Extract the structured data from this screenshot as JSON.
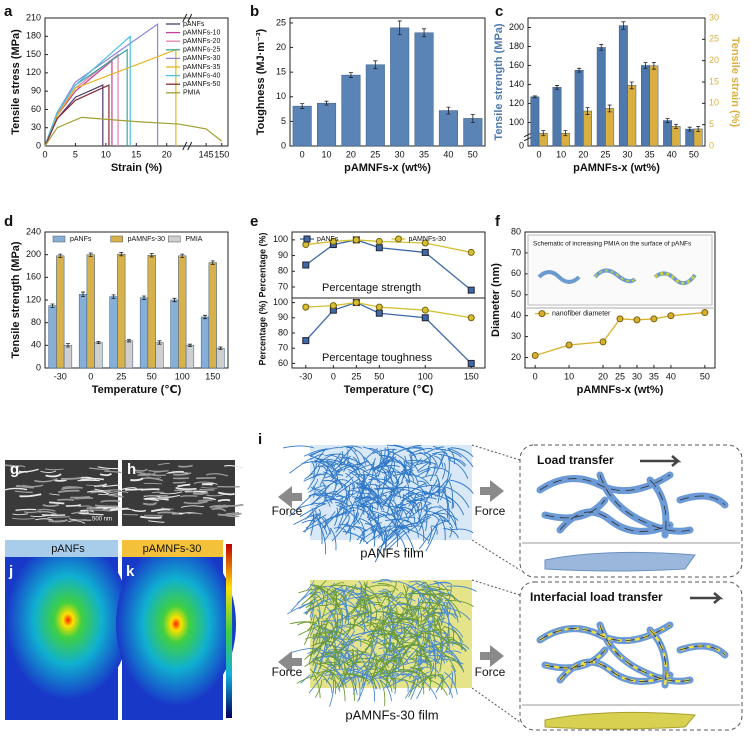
{
  "chart_data": [
    {
      "panel": "a",
      "type": "line",
      "xlabel": "Strain (%)",
      "ylabel": "Tensile stress (MPa)",
      "xlim": [
        0,
        152
      ],
      "xbreak": [
        23,
        140
      ],
      "xticks": [
        0,
        5,
        10,
        15,
        20,
        145,
        150
      ],
      "ylim": [
        0,
        210
      ],
      "yticks": [
        0,
        30,
        60,
        90,
        120,
        150,
        180,
        210
      ],
      "legend": "upper right",
      "series": [
        {
          "name": "pANFs",
          "color": "#4b3b6b",
          "x": [
            0,
            2,
            5,
            9.5,
            9.5
          ],
          "values": [
            0,
            45,
            80,
            100,
            0
          ]
        },
        {
          "name": "pAMNFs-10",
          "color": "#c0409a",
          "x": [
            0,
            2,
            5,
            11,
            11
          ],
          "values": [
            0,
            50,
            90,
            140,
            0
          ]
        },
        {
          "name": "pAMNFs-20",
          "color": "#e77fb0",
          "x": [
            0,
            2,
            5,
            12,
            12
          ],
          "values": [
            0,
            52,
            95,
            150,
            0
          ]
        },
        {
          "name": "pAMNFs-25",
          "color": "#3aa7a0",
          "x": [
            0,
            2,
            5,
            13.5,
            13.5
          ],
          "values": [
            0,
            55,
            100,
            158,
            0
          ]
        },
        {
          "name": "pAMNFs-30",
          "color": "#8c88d8",
          "x": [
            0,
            2,
            5,
            18.5,
            18.5
          ],
          "values": [
            0,
            55,
            105,
            200,
            0
          ]
        },
        {
          "name": "pAMNFs-35",
          "color": "#e6b41e",
          "x": [
            0,
            2,
            5,
            21.5,
            21.5
          ],
          "values": [
            0,
            50,
            95,
            158,
            0
          ]
        },
        {
          "name": "pAMNFs-40",
          "color": "#49c0e0",
          "x": [
            0,
            2,
            5,
            14,
            14
          ],
          "values": [
            0,
            55,
            100,
            180,
            0
          ]
        },
        {
          "name": "pAMNFs-50",
          "color": "#8b2a3a",
          "x": [
            0,
            2,
            5,
            10.5,
            10.5
          ],
          "values": [
            0,
            45,
            75,
            100,
            0
          ]
        },
        {
          "name": "PMIA",
          "color": "#a0a030",
          "x": [
            0,
            2,
            6,
            15,
            22,
            145,
            150
          ],
          "values": [
            0,
            30,
            47,
            40,
            36,
            28,
            8
          ]
        }
      ]
    },
    {
      "panel": "b",
      "type": "bar",
      "xlabel": "pAMNFs-x (wt%)",
      "ylabel": "Toughness (MJ·m⁻³)",
      "categories": [
        "0",
        "10",
        "20",
        "25",
        "30",
        "35",
        "40",
        "50"
      ],
      "ylim": [
        0,
        26
      ],
      "yticks": [
        0,
        5,
        10,
        15,
        20,
        25
      ],
      "series": [
        {
          "color": "#5b84b6",
          "values": [
            8.1,
            8.7,
            14.4,
            16.5,
            24,
            23,
            7.2,
            5.6
          ],
          "errors": [
            0.5,
            0.4,
            0.5,
            0.8,
            1.4,
            0.8,
            0.7,
            0.8
          ]
        }
      ]
    },
    {
      "panel": "c",
      "type": "bar",
      "xlabel": "pAMNFs-x (wt%)",
      "ylabel": "Tensile strength (MPa)",
      "y2label": "Tensile strain (%)",
      "categories": [
        "0",
        "10",
        "20",
        "25",
        "30",
        "35",
        "40",
        "50"
      ],
      "ylim": [
        0,
        210
      ],
      "ybreak": [
        5,
        88
      ],
      "yticks": [
        0,
        100,
        120,
        140,
        160,
        180,
        200
      ],
      "y2lim": [
        0,
        30
      ],
      "y2ticks": [
        0,
        5,
        10,
        15,
        20,
        25,
        30
      ],
      "series": [
        {
          "color": "#4f79ad",
          "values": [
            127,
            137,
            155,
            179,
            202,
            160,
            102,
            93
          ],
          "errors": [
            1,
            2,
            2,
            3,
            4,
            3,
            2,
            2
          ]
        },
        {
          "color": "#d9b040",
          "axis": "y2",
          "values": [
            3,
            3,
            8.2,
            8.8,
            14.2,
            18.8,
            4.6,
            4
          ],
          "errors": [
            0.6,
            0.6,
            0.8,
            0.8,
            0.8,
            0.8,
            0.5,
            0.6
          ]
        }
      ]
    },
    {
      "panel": "d",
      "type": "bar",
      "xlabel": "Temperature (℃)",
      "ylabel": "Tensile strength (MPa)",
      "categories": [
        "-30",
        "0",
        "25",
        "50",
        "100",
        "150"
      ],
      "ylim": [
        0,
        240
      ],
      "yticks": [
        0,
        40,
        80,
        120,
        160,
        200,
        240
      ],
      "legend": "upper center",
      "series": [
        {
          "name": "pANFs",
          "color": "#86afd8",
          "values": [
            110,
            130,
            126,
            124,
            120,
            90
          ],
          "errors": [
            3,
            4,
            3,
            3,
            3,
            3
          ]
        },
        {
          "name": "pAMNFs-30",
          "color": "#d7b14c",
          "values": [
            198,
            200,
            201,
            199,
            198,
            186
          ],
          "errors": [
            3,
            3,
            3,
            3,
            3,
            3
          ]
        },
        {
          "name": "PMIA",
          "color": "#cfcfcf",
          "values": [
            40,
            45,
            48,
            45,
            40,
            35
          ],
          "errors": [
            3,
            2,
            2,
            3,
            2,
            2
          ]
        }
      ]
    },
    {
      "panel": "e",
      "type": "line",
      "ylabel": "Percentage (%)",
      "annotation": "Percentage strength",
      "x": [
        -30,
        0,
        25,
        50,
        100,
        150
      ],
      "xlim": [
        -45,
        165
      ],
      "ylim": [
        63,
        105
      ],
      "yticks": [
        70,
        80,
        90,
        100
      ],
      "legend": "upper center",
      "series": [
        {
          "name": "pANFs",
          "color": "#3c6aa8",
          "marker": "square",
          "values": [
            84,
            97,
            100,
            95,
            92,
            68
          ]
        },
        {
          "name": "pAMNFs-30",
          "color": "#d4c030",
          "marker": "circle",
          "values": [
            97,
            99,
            100,
            99,
            98,
            92
          ]
        }
      ]
    },
    {
      "type": "line",
      "xlabel": "Temperature (℃)",
      "ylabel": "Percentage (%)",
      "annotation": "Percentage toughness",
      "x": [
        -30,
        0,
        25,
        50,
        100,
        150
      ],
      "xlim": [
        -45,
        165
      ],
      "xticks": [
        -30,
        0,
        25,
        50,
        100,
        150
      ],
      "ylim": [
        57,
        103
      ],
      "yticks": [
        60,
        70,
        80,
        90,
        100
      ],
      "series": [
        {
          "color": "#3c6aa8",
          "marker": "square",
          "values": [
            75,
            95,
            100,
            93,
            90,
            60
          ]
        },
        {
          "color": "#d4c030",
          "marker": "circle",
          "values": [
            97,
            98,
            100,
            97,
            95,
            90
          ]
        }
      ]
    },
    {
      "panel": "f",
      "type": "line",
      "xlabel": "pAMNFs-x (wt%)",
      "ylabel": "Diameter (nm)",
      "inset_title": "Schematic of increasing PMIA on the surface of pANFs",
      "x": [
        0,
        10,
        20,
        25,
        30,
        35,
        40,
        50
      ],
      "xlim": [
        -3,
        53
      ],
      "xticks": [
        0,
        10,
        20,
        25,
        30,
        35,
        40,
        50
      ],
      "ylim": [
        15,
        80
      ],
      "yticks": [
        20,
        30,
        40,
        50,
        60,
        70,
        80
      ],
      "legend": "center left",
      "series": [
        {
          "name": "nanofiber diameter",
          "color": "#d9b02c",
          "marker": "circle",
          "values": [
            21,
            26,
            27.5,
            38.5,
            38,
            38.5,
            40,
            41.5
          ]
        }
      ]
    }
  ],
  "figure": {
    "g": {
      "label": "g",
      "scale": "500 nm"
    },
    "h": {
      "label": "h"
    },
    "j": {
      "label": "j",
      "title": "pANFs"
    },
    "k": {
      "label": "k",
      "title": "pAMNFs-30"
    },
    "i": {
      "label": "i",
      "force": [
        "Force",
        "Force",
        "Force",
        "Force"
      ],
      "top_caption": "pANFs film",
      "bottom_caption": "pAMNFs-30 film",
      "top_inset": "Load transfer",
      "bottom_inset": "Interfacial load transfer"
    }
  }
}
